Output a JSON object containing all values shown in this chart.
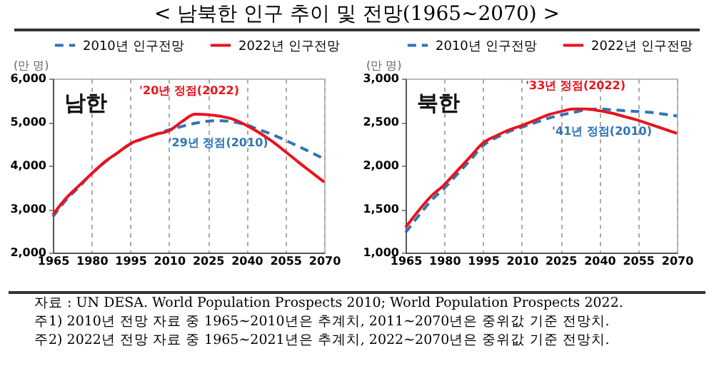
{
  "chart_data": [
    {
      "type": "line",
      "title": "< 남북한 인구 추이 및 전망(1965~2070) >",
      "ylabel": "(만 명)",
      "xlim": [
        1965,
        2070
      ],
      "xticks": [
        1965,
        1980,
        1995,
        2010,
        2025,
        2040,
        2055,
        2070
      ],
      "ylim": [
        2000,
        6000
      ],
      "yticks": [
        {
          "value": 2000,
          "label": "2,000"
        },
        {
          "value": 3000,
          "label": "3,000"
        },
        {
          "value": 4000,
          "label": "4,000"
        },
        {
          "value": 5000,
          "label": "5,000"
        },
        {
          "value": 6000,
          "label": "6,000"
        }
      ],
      "grid": "x",
      "legend": "top",
      "x": [
        1965,
        1970,
        1975,
        1980,
        1985,
        1990,
        1995,
        2000,
        2005,
        2010,
        2015,
        2020,
        2025,
        2030,
        2035,
        2040,
        2045,
        2050,
        2055,
        2060,
        2065,
        2070
      ],
      "series": [
        {
          "name": "2010년 인구전망",
          "color": "#2e75b6",
          "line_style": "dashed",
          "values": [
            2820,
            3200,
            3500,
            3810,
            4070,
            4290,
            4490,
            4620,
            4720,
            4820,
            4900,
            4970,
            5020,
            5030,
            5000,
            4930,
            4820,
            4710,
            4580,
            4440,
            4300,
            4150
          ]
        },
        {
          "name": "2022년 인구전망",
          "color": "#e8141c",
          "line_style": "solid",
          "values": [
            2870,
            3240,
            3530,
            3810,
            4080,
            4290,
            4500,
            4620,
            4720,
            4800,
            5010,
            5180,
            5170,
            5130,
            5060,
            4920,
            4750,
            4550,
            4320,
            4080,
            3850,
            3620
          ]
        }
      ],
      "annotations": [
        "남한",
        {
          "text": "'20년 정점(2022)",
          "x": 2020,
          "y": 5180
        },
        {
          "text": "'29년 정점(2010)",
          "x": 2029,
          "y": 5030
        }
      ]
    },
    {
      "type": "line",
      "ylabel": "(만 명)",
      "xlim": [
        1965,
        2070
      ],
      "xticks": [
        1965,
        1980,
        1995,
        2010,
        2025,
        2040,
        2055,
        2070
      ],
      "ylim": [
        1000,
        3000
      ],
      "yticks": [
        {
          "value": 1000,
          "label": "1,000"
        },
        {
          "value": 1500,
          "label": "1,500"
        },
        {
          "value": 2000,
          "label": "2,000"
        },
        {
          "value": 2500,
          "label": "2,500"
        },
        {
          "value": 3000,
          "label": "3,000"
        }
      ],
      "grid": "x",
      "legend": "top",
      "x": [
        1965,
        1970,
        1975,
        1980,
        1985,
        1990,
        1995,
        2000,
        2005,
        2010,
        2015,
        2020,
        2025,
        2030,
        2035,
        2040,
        2045,
        2050,
        2055,
        2060,
        2065,
        2070
      ],
      "series": [
        {
          "name": "2010년 인구전망",
          "color": "#2e75b6",
          "line_style": "dashed",
          "values": [
            1230,
            1420,
            1600,
            1740,
            1900,
            2060,
            2230,
            2320,
            2390,
            2440,
            2490,
            2540,
            2580,
            2610,
            2640,
            2650,
            2640,
            2630,
            2620,
            2610,
            2590,
            2570
          ]
        },
        {
          "name": "2022년 인구전망",
          "color": "#e8141c",
          "line_style": "solid",
          "values": [
            1290,
            1480,
            1650,
            1780,
            1940,
            2100,
            2260,
            2340,
            2410,
            2460,
            2520,
            2580,
            2620,
            2650,
            2650,
            2630,
            2600,
            2560,
            2520,
            2470,
            2420,
            2370
          ]
        }
      ],
      "annotations": [
        "북한",
        {
          "text": "'33년 정점(2022)",
          "x": 2033,
          "y": 2650
        },
        {
          "text": "'41년 정점(2010)",
          "x": 2041,
          "y": 2650
        },
        "자료 : UN DESA. World Population Prospects 2010; World Population Prospects 2022.",
        "주1) 2010년 전망 자료 중 1965~2010년은 추계치, 2011~2070년은 중위값 기준 전망치.",
        "주2) 2022년 전망 자료 중 1965~2021년은 추계치, 2022~2070년은 중위값 기준 전망치."
      ]
    }
  ]
}
